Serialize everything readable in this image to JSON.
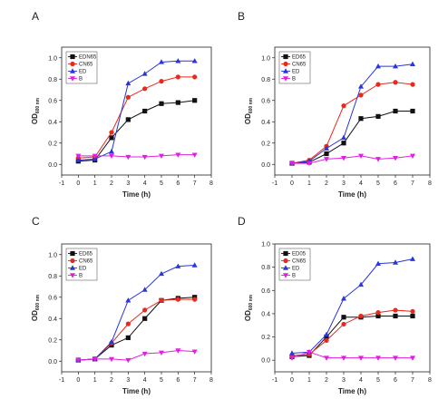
{
  "figure": {
    "panels_letters": [
      "A",
      "B",
      "C",
      "D"
    ]
  },
  "chart_data": [
    {
      "type": "line",
      "panel": "A",
      "xlabel": "Time (h)",
      "ylabel": "OD",
      "ylabel_sub": "600 nm",
      "xlim": [
        -1,
        8
      ],
      "ylim": [
        -0.1,
        1.1
      ],
      "xticks": [
        -1,
        0,
        1,
        2,
        3,
        4,
        5,
        6,
        7,
        8
      ],
      "yticks": [
        0.0,
        0.2,
        0.4,
        0.6,
        0.8,
        1.0
      ],
      "x": [
        0,
        1,
        2,
        3,
        4,
        5,
        6,
        7
      ],
      "legend_position": "top-left",
      "series": [
        {
          "name": "EDN65",
          "color": "#111111",
          "marker": "square",
          "values": [
            0.03,
            0.04,
            0.25,
            0.42,
            0.5,
            0.57,
            0.58,
            0.6
          ]
        },
        {
          "name": "CN65",
          "color": "#e8291c",
          "marker": "circle",
          "values": [
            0.06,
            0.07,
            0.3,
            0.63,
            0.71,
            0.78,
            0.82,
            0.82
          ]
        },
        {
          "name": "ED",
          "color": "#2a36d8",
          "marker": "triangle-up",
          "values": [
            0.04,
            0.05,
            0.12,
            0.76,
            0.85,
            0.96,
            0.97,
            0.97
          ]
        },
        {
          "name": "B",
          "color": "#e020e0",
          "marker": "triangle-down",
          "values": [
            0.08,
            0.08,
            0.08,
            0.07,
            0.07,
            0.08,
            0.09,
            0.09
          ]
        }
      ]
    },
    {
      "type": "line",
      "panel": "B",
      "xlabel": "Time (h)",
      "ylabel": "OD",
      "ylabel_sub": "600 nm",
      "xlim": [
        -1,
        8
      ],
      "ylim": [
        -0.1,
        1.1
      ],
      "xticks": [
        -1,
        0,
        1,
        2,
        3,
        4,
        5,
        6,
        7,
        8
      ],
      "yticks": [
        0.0,
        0.2,
        0.4,
        0.6,
        0.8,
        1.0
      ],
      "x": [
        0,
        1,
        2,
        3,
        4,
        5,
        6,
        7
      ],
      "legend_position": "top-left",
      "series": [
        {
          "name": "ED65",
          "color": "#111111",
          "marker": "square",
          "values": [
            0.01,
            0.02,
            0.1,
            0.2,
            0.43,
            0.45,
            0.5,
            0.5
          ]
        },
        {
          "name": "CN65",
          "color": "#e8291c",
          "marker": "circle",
          "values": [
            0.01,
            0.04,
            0.17,
            0.55,
            0.65,
            0.75,
            0.77,
            0.75
          ]
        },
        {
          "name": "ED",
          "color": "#2a36d8",
          "marker": "triangle-up",
          "values": [
            0.01,
            0.03,
            0.15,
            0.25,
            0.73,
            0.92,
            0.92,
            0.94
          ]
        },
        {
          "name": "B",
          "color": "#e020e0",
          "marker": "triangle-down",
          "values": [
            0.01,
            0.01,
            0.05,
            0.06,
            0.08,
            0.05,
            0.06,
            0.08
          ]
        }
      ]
    },
    {
      "type": "line",
      "panel": "C",
      "xlabel": "Time (h)",
      "ylabel": "OD",
      "ylabel_sub": "600 nm",
      "xlim": [
        -1,
        8
      ],
      "ylim": [
        -0.1,
        1.1
      ],
      "xticks": [
        -1,
        0,
        1,
        2,
        3,
        4,
        5,
        6,
        7,
        8
      ],
      "yticks": [
        0.0,
        0.2,
        0.4,
        0.6,
        0.8,
        1.0
      ],
      "x": [
        0,
        1,
        2,
        3,
        4,
        5,
        6,
        7
      ],
      "legend_position": "top-left",
      "series": [
        {
          "name": "ED65",
          "color": "#111111",
          "marker": "square",
          "values": [
            0.01,
            0.02,
            0.15,
            0.22,
            0.4,
            0.57,
            0.59,
            0.6
          ]
        },
        {
          "name": "CN65",
          "color": "#e8291c",
          "marker": "circle",
          "values": [
            0.01,
            0.02,
            0.17,
            0.35,
            0.48,
            0.57,
            0.58,
            0.58
          ]
        },
        {
          "name": "ED",
          "color": "#2a36d8",
          "marker": "triangle-up",
          "values": [
            0.01,
            0.02,
            0.18,
            0.57,
            0.67,
            0.82,
            0.89,
            0.9
          ]
        },
        {
          "name": "B",
          "color": "#e020e0",
          "marker": "triangle-down",
          "values": [
            0.01,
            0.02,
            0.02,
            0.01,
            0.07,
            0.08,
            0.1,
            0.09
          ]
        }
      ]
    },
    {
      "type": "line",
      "panel": "D",
      "xlabel": "Time (h)",
      "ylabel": "OD",
      "ylabel_sub": "600 nm",
      "xlim": [
        -1,
        8
      ],
      "ylim": [
        -0.1,
        1.0
      ],
      "xticks": [
        -1,
        0,
        1,
        2,
        3,
        4,
        5,
        6,
        7,
        8
      ],
      "yticks": [
        0.0,
        0.2,
        0.4,
        0.6,
        0.8,
        1.0
      ],
      "x": [
        0,
        1,
        2,
        3,
        4,
        5,
        6,
        7
      ],
      "legend_position": "top-left",
      "series": [
        {
          "name": "ED05",
          "color": "#111111",
          "marker": "square",
          "values": [
            0.03,
            0.04,
            0.2,
            0.37,
            0.37,
            0.38,
            0.38,
            0.38
          ]
        },
        {
          "name": "CN65",
          "color": "#e8291c",
          "marker": "circle",
          "values": [
            0.04,
            0.05,
            0.17,
            0.31,
            0.38,
            0.41,
            0.43,
            0.42
          ]
        },
        {
          "name": "ED",
          "color": "#2a36d8",
          "marker": "triangle-up",
          "values": [
            0.06,
            0.07,
            0.22,
            0.53,
            0.65,
            0.83,
            0.84,
            0.87
          ]
        },
        {
          "name": "B",
          "color": "#e020e0",
          "marker": "triangle-down",
          "values": [
            0.02,
            0.07,
            0.02,
            0.02,
            0.02,
            0.02,
            0.02,
            0.02
          ]
        }
      ]
    }
  ]
}
